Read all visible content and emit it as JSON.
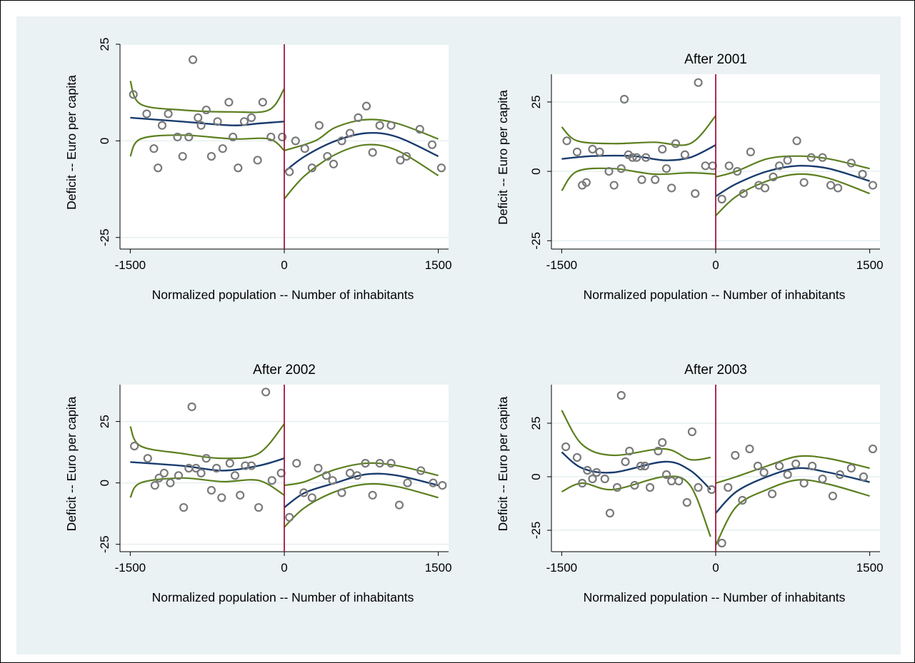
{
  "chart_data": [
    {
      "type": "scatter",
      "title": "",
      "xlabel": "Normalized population -- Number of inhabitants",
      "ylabel": "Deficit -- Euro per capita",
      "xlim": [
        -1600,
        1600
      ],
      "ylim": [
        -28,
        25
      ],
      "xticks": [
        -1500,
        0,
        1500
      ],
      "yticks": [
        -25,
        0,
        25
      ],
      "cutoff": 0,
      "points": [
        [
          -1470,
          12
        ],
        [
          -1340,
          7
        ],
        [
          -1270,
          -2
        ],
        [
          -1230,
          -7
        ],
        [
          -1190,
          4
        ],
        [
          -1130,
          7
        ],
        [
          -1040,
          1
        ],
        [
          -990,
          -4
        ],
        [
          -930,
          1
        ],
        [
          -890,
          21
        ],
        [
          -840,
          6
        ],
        [
          -810,
          4
        ],
        [
          -760,
          8
        ],
        [
          -710,
          -4
        ],
        [
          -650,
          5
        ],
        [
          -600,
          -2
        ],
        [
          -540,
          10
        ],
        [
          -500,
          1
        ],
        [
          -450,
          -7
        ],
        [
          -390,
          5
        ],
        [
          -320,
          6
        ],
        [
          -260,
          -5
        ],
        [
          -210,
          10
        ],
        [
          -130,
          1
        ],
        [
          -20,
          1
        ],
        [
          50,
          -8
        ],
        [
          110,
          0
        ],
        [
          200,
          -2
        ],
        [
          270,
          -7
        ],
        [
          340,
          4
        ],
        [
          420,
          -4
        ],
        [
          480,
          -6
        ],
        [
          560,
          0
        ],
        [
          640,
          2
        ],
        [
          720,
          6
        ],
        [
          800,
          9
        ],
        [
          860,
          -3
        ],
        [
          930,
          4
        ],
        [
          1040,
          4
        ],
        [
          1130,
          -5
        ],
        [
          1190,
          -4
        ],
        [
          1320,
          3
        ],
        [
          1440,
          -1
        ],
        [
          1530,
          -7
        ]
      ],
      "fit_left": {
        "center": [
          [
            -1500,
            6
          ],
          [
            -1000,
            5
          ],
          [
            -500,
            4
          ],
          [
            -250,
            4.5
          ],
          [
            0,
            5
          ]
        ],
        "upper": [
          [
            -1500,
            15.5
          ],
          [
            -1400,
            9.5
          ],
          [
            -1000,
            8
          ],
          [
            -500,
            7.5
          ],
          [
            -150,
            8
          ],
          [
            0,
            13.5
          ]
        ],
        "lower": [
          [
            -1500,
            -4
          ],
          [
            -1400,
            0.5
          ],
          [
            -1000,
            1.5
          ],
          [
            -500,
            0.5
          ],
          [
            -150,
            0.5
          ],
          [
            0,
            -2.5
          ]
        ]
      },
      "fit_right": {
        "center": [
          [
            0,
            -8
          ],
          [
            200,
            -4
          ],
          [
            500,
            0
          ],
          [
            800,
            2
          ],
          [
            1100,
            1
          ],
          [
            1500,
            -4
          ]
        ],
        "upper": [
          [
            0,
            -2.5
          ],
          [
            300,
            0
          ],
          [
            500,
            3.5
          ],
          [
            800,
            5.5
          ],
          [
            1100,
            4.5
          ],
          [
            1500,
            0.5
          ]
        ],
        "lower": [
          [
            0,
            -15
          ],
          [
            200,
            -9
          ],
          [
            500,
            -3.5
          ],
          [
            800,
            -1
          ],
          [
            1100,
            -2.5
          ],
          [
            1500,
            -9
          ]
        ]
      }
    },
    {
      "type": "scatter",
      "title": "After 2001",
      "xlabel": "Normalized population -- Number of inhabitants",
      "ylabel": "Deficit -- Euro per capita",
      "xlim": [
        -1600,
        1600
      ],
      "ylim": [
        -28,
        35
      ],
      "xticks": [
        -1500,
        0,
        1500
      ],
      "yticks": [
        -25,
        0,
        25
      ],
      "cutoff": 0,
      "points": [
        [
          -1450,
          11
        ],
        [
          -1350,
          7
        ],
        [
          -1300,
          -5
        ],
        [
          -1260,
          -4
        ],
        [
          -1200,
          8
        ],
        [
          -1130,
          7
        ],
        [
          -1040,
          0
        ],
        [
          -990,
          -5
        ],
        [
          -920,
          1
        ],
        [
          -890,
          26
        ],
        [
          -850,
          6
        ],
        [
          -810,
          5
        ],
        [
          -770,
          5
        ],
        [
          -720,
          -3
        ],
        [
          -680,
          5
        ],
        [
          -590,
          -3
        ],
        [
          -520,
          8
        ],
        [
          -480,
          1
        ],
        [
          -430,
          -6
        ],
        [
          -390,
          10
        ],
        [
          -300,
          6
        ],
        [
          -200,
          -8
        ],
        [
          -170,
          32
        ],
        [
          -100,
          2
        ],
        [
          -30,
          2
        ],
        [
          60,
          -10
        ],
        [
          130,
          2
        ],
        [
          210,
          0
        ],
        [
          270,
          -8
        ],
        [
          340,
          7
        ],
        [
          420,
          -5
        ],
        [
          480,
          -6
        ],
        [
          560,
          -2
        ],
        [
          620,
          2
        ],
        [
          700,
          4
        ],
        [
          790,
          11
        ],
        [
          860,
          -4
        ],
        [
          930,
          5
        ],
        [
          1040,
          5
        ],
        [
          1120,
          -5
        ],
        [
          1190,
          -6
        ],
        [
          1320,
          3
        ],
        [
          1430,
          -1
        ],
        [
          1530,
          -5
        ]
      ],
      "fit_left": {
        "center": [
          [
            -1500,
            4.5
          ],
          [
            -1200,
            5.5
          ],
          [
            -800,
            5.5
          ],
          [
            -500,
            4
          ],
          [
            -250,
            5
          ],
          [
            0,
            9.5
          ]
        ],
        "upper": [
          [
            -1500,
            16
          ],
          [
            -1350,
            11
          ],
          [
            -1000,
            10
          ],
          [
            -600,
            10.5
          ],
          [
            -250,
            10
          ],
          [
            0,
            20
          ]
        ],
        "lower": [
          [
            -1500,
            -7
          ],
          [
            -1350,
            0
          ],
          [
            -1000,
            1
          ],
          [
            -600,
            -1
          ],
          [
            -250,
            -0.5
          ],
          [
            0,
            -1
          ]
        ]
      },
      "fit_right": {
        "center": [
          [
            0,
            -9
          ],
          [
            200,
            -4.5
          ],
          [
            500,
            0
          ],
          [
            800,
            2
          ],
          [
            1100,
            1
          ],
          [
            1500,
            -3.5
          ]
        ],
        "upper": [
          [
            0,
            -2
          ],
          [
            200,
            0
          ],
          [
            500,
            4.5
          ],
          [
            800,
            5.5
          ],
          [
            1100,
            4.5
          ],
          [
            1500,
            1
          ]
        ],
        "lower": [
          [
            0,
            -16
          ],
          [
            200,
            -9
          ],
          [
            500,
            -3.5
          ],
          [
            800,
            -1
          ],
          [
            1100,
            -2.5
          ],
          [
            1500,
            -8
          ]
        ]
      }
    },
    {
      "type": "scatter",
      "title": "After 2002",
      "xlabel": "Normalized population -- Number of inhabitants",
      "ylabel": "Deficit -- Euro per capita",
      "xlim": [
        -1600,
        1600
      ],
      "ylim": [
        -28,
        40
      ],
      "xticks": [
        -1500,
        0,
        1500
      ],
      "yticks": [
        -25,
        0,
        25
      ],
      "cutoff": 0,
      "points": [
        [
          -1460,
          15
        ],
        [
          -1330,
          10
        ],
        [
          -1260,
          -1
        ],
        [
          -1220,
          2
        ],
        [
          -1170,
          4
        ],
        [
          -1110,
          0
        ],
        [
          -1030,
          3
        ],
        [
          -980,
          -10
        ],
        [
          -930,
          6
        ],
        [
          -900,
          31
        ],
        [
          -860,
          6
        ],
        [
          -810,
          4
        ],
        [
          -760,
          10
        ],
        [
          -710,
          -3
        ],
        [
          -660,
          6
        ],
        [
          -610,
          -6
        ],
        [
          -530,
          8
        ],
        [
          -480,
          3
        ],
        [
          -430,
          -5
        ],
        [
          -380,
          7
        ],
        [
          -320,
          7
        ],
        [
          -250,
          -10
        ],
        [
          -180,
          37
        ],
        [
          -120,
          1
        ],
        [
          -30,
          4
        ],
        [
          50,
          -14
        ],
        [
          120,
          8
        ],
        [
          190,
          -4
        ],
        [
          270,
          -6
        ],
        [
          330,
          6
        ],
        [
          410,
          3
        ],
        [
          470,
          1
        ],
        [
          560,
          -4
        ],
        [
          640,
          4
        ],
        [
          710,
          3
        ],
        [
          790,
          8
        ],
        [
          860,
          -5
        ],
        [
          930,
          8
        ],
        [
          1040,
          8
        ],
        [
          1120,
          -9
        ],
        [
          1200,
          0
        ],
        [
          1330,
          5
        ],
        [
          1450,
          0
        ],
        [
          1540,
          -1
        ]
      ],
      "fit_left": {
        "center": [
          [
            -1500,
            8.5
          ],
          [
            -1000,
            7
          ],
          [
            -600,
            5
          ],
          [
            -250,
            7
          ],
          [
            0,
            10
          ]
        ],
        "upper": [
          [
            -1500,
            23
          ],
          [
            -1400,
            15
          ],
          [
            -1000,
            12
          ],
          [
            -600,
            10
          ],
          [
            -250,
            12
          ],
          [
            0,
            24
          ]
        ],
        "lower": [
          [
            -1500,
            -6
          ],
          [
            -1400,
            0
          ],
          [
            -1000,
            2
          ],
          [
            -600,
            0.5
          ],
          [
            -250,
            1
          ],
          [
            0,
            -5
          ]
        ]
      },
      "fit_right": {
        "center": [
          [
            0,
            -10
          ],
          [
            200,
            -4
          ],
          [
            500,
            0
          ],
          [
            800,
            3.5
          ],
          [
            1100,
            3
          ],
          [
            1500,
            -1
          ]
        ],
        "upper": [
          [
            0,
            -1
          ],
          [
            200,
            0.5
          ],
          [
            500,
            5.5
          ],
          [
            800,
            8
          ],
          [
            1100,
            7
          ],
          [
            1500,
            3
          ]
        ],
        "lower": [
          [
            0,
            -18
          ],
          [
            200,
            -10
          ],
          [
            500,
            -3.5
          ],
          [
            800,
            -0.5
          ],
          [
            1100,
            -1.5
          ],
          [
            1500,
            -6
          ]
        ]
      }
    },
    {
      "type": "scatter",
      "title": "After 2003",
      "xlabel": "Normalized population -- Number of inhabitants",
      "ylabel": "Deficit -- Euro per capita",
      "xlim": [
        -1600,
        1600
      ],
      "ylim": [
        -35,
        43
      ],
      "xticks": [
        -1500,
        0,
        1500
      ],
      "yticks": [
        -25,
        0,
        25
      ],
      "cutoff": 0,
      "points": [
        [
          -1460,
          14
        ],
        [
          -1350,
          9
        ],
        [
          -1300,
          -3
        ],
        [
          -1250,
          3
        ],
        [
          -1200,
          -1
        ],
        [
          -1160,
          2
        ],
        [
          -1080,
          -1
        ],
        [
          -1030,
          -17
        ],
        [
          -960,
          -5
        ],
        [
          -920,
          38
        ],
        [
          -880,
          7
        ],
        [
          -840,
          12
        ],
        [
          -790,
          -4
        ],
        [
          -730,
          5
        ],
        [
          -690,
          5
        ],
        [
          -640,
          -5
        ],
        [
          -560,
          12
        ],
        [
          -520,
          16
        ],
        [
          -480,
          1
        ],
        [
          -430,
          -2
        ],
        [
          -360,
          -2
        ],
        [
          -280,
          -12
        ],
        [
          -230,
          21
        ],
        [
          -170,
          -5
        ],
        [
          -40,
          -6
        ],
        [
          60,
          -31
        ],
        [
          120,
          -5
        ],
        [
          190,
          10
        ],
        [
          260,
          -11
        ],
        [
          330,
          13
        ],
        [
          410,
          5
        ],
        [
          470,
          2
        ],
        [
          550,
          -8
        ],
        [
          620,
          5
        ],
        [
          700,
          1
        ],
        [
          780,
          6
        ],
        [
          860,
          -3
        ],
        [
          940,
          5
        ],
        [
          1040,
          -1
        ],
        [
          1140,
          -9
        ],
        [
          1210,
          1
        ],
        [
          1320,
          4
        ],
        [
          1440,
          0
        ],
        [
          1530,
          13
        ]
      ],
      "fit_left": {
        "center": [
          [
            -1500,
            11.5
          ],
          [
            -1300,
            4
          ],
          [
            -1000,
            2
          ],
          [
            -500,
            7
          ],
          [
            -250,
            3
          ],
          [
            -50,
            -6
          ]
        ],
        "upper": [
          [
            -1500,
            31
          ],
          [
            -1300,
            15
          ],
          [
            -1000,
            10
          ],
          [
            -500,
            13
          ],
          [
            -250,
            8
          ],
          [
            -50,
            9
          ]
        ],
        "lower": [
          [
            -1500,
            -7
          ],
          [
            -1300,
            -3
          ],
          [
            -1000,
            -6
          ],
          [
            -500,
            0
          ],
          [
            -250,
            -4
          ],
          [
            -50,
            -28
          ]
        ]
      },
      "fit_right": {
        "center": [
          [
            0,
            -17
          ],
          [
            200,
            -7
          ],
          [
            500,
            0
          ],
          [
            800,
            4
          ],
          [
            1100,
            2
          ],
          [
            1500,
            -2.5
          ]
        ],
        "upper": [
          [
            0,
            -3
          ],
          [
            200,
            0
          ],
          [
            500,
            5
          ],
          [
            800,
            9.5
          ],
          [
            1100,
            8.5
          ],
          [
            1500,
            4
          ]
        ],
        "lower": [
          [
            0,
            -32
          ],
          [
            200,
            -14
          ],
          [
            500,
            -6
          ],
          [
            800,
            -1.5
          ],
          [
            1100,
            -3.5
          ],
          [
            1500,
            -9
          ]
        ]
      }
    }
  ]
}
